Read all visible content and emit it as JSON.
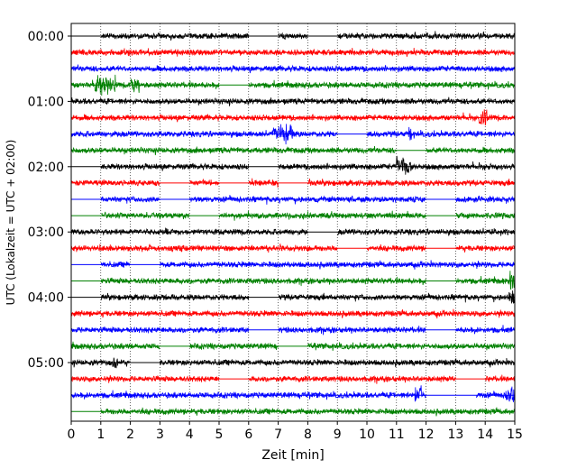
{
  "chart_data": {
    "type": "line",
    "title": "",
    "xlabel": "Zeit  [min]",
    "ylabel": "UTC (Lokalzeit = UTC + 02:00)",
    "xlim": [
      0,
      15
    ],
    "x_ticks": [
      "0",
      "1",
      "2",
      "3",
      "4",
      "5",
      "6",
      "7",
      "8",
      "9",
      "10",
      "11",
      "12",
      "13",
      "14",
      "15"
    ],
    "y_ticks": [
      "00:00",
      "01:00",
      "02:00",
      "03:00",
      "04:00",
      "05:00"
    ],
    "grid": "vertical dotted",
    "colors": [
      "#000000",
      "#ff0000",
      "#0000ff",
      "#008000"
    ],
    "trace_interval_min": 15,
    "traces": [
      {
        "start": "00:00",
        "color": "#000000",
        "gaps": [
          [
            0,
            1
          ],
          [
            6,
            7
          ],
          [
            8,
            9
          ]
        ],
        "bursts": []
      },
      {
        "start": "00:15",
        "color": "#ff0000",
        "gaps": [],
        "bursts": []
      },
      {
        "start": "00:30",
        "color": "#0000ff",
        "gaps": [],
        "bursts": []
      },
      {
        "start": "00:45",
        "color": "#008000",
        "gaps": [
          [
            5,
            6
          ]
        ],
        "bursts": [
          [
            0.8,
            1.5
          ],
          [
            2.0,
            2.3
          ]
        ]
      },
      {
        "start": "01:00",
        "color": "#000000",
        "gaps": [],
        "bursts": []
      },
      {
        "start": "01:15",
        "color": "#ff0000",
        "gaps": [],
        "bursts": [
          [
            13.8,
            14.1
          ]
        ]
      },
      {
        "start": "01:30",
        "color": "#0000ff",
        "gaps": [
          [
            9,
            10
          ]
        ],
        "bursts": [
          [
            6.8,
            7.5
          ],
          [
            11.4,
            11.5
          ]
        ]
      },
      {
        "start": "01:45",
        "color": "#008000",
        "gaps": [
          [
            11,
            12
          ]
        ],
        "bursts": []
      },
      {
        "start": "02:00",
        "color": "#000000",
        "gaps": [
          [
            0,
            1
          ],
          [
            6,
            7
          ]
        ],
        "bursts": [
          [
            11,
            11.5
          ]
        ]
      },
      {
        "start": "02:15",
        "color": "#ff0000",
        "gaps": [
          [
            3,
            4
          ],
          [
            5,
            6
          ],
          [
            7,
            8
          ]
        ],
        "bursts": []
      },
      {
        "start": "02:30",
        "color": "#0000ff",
        "gaps": [
          [
            0,
            1
          ],
          [
            3,
            4
          ],
          [
            12,
            13
          ]
        ],
        "bursts": []
      },
      {
        "start": "02:45",
        "color": "#008000",
        "gaps": [
          [
            0,
            1
          ],
          [
            4,
            5
          ],
          [
            12,
            13
          ]
        ],
        "bursts": []
      },
      {
        "start": "03:00",
        "color": "#000000",
        "gaps": [
          [
            8,
            9
          ]
        ],
        "bursts": []
      },
      {
        "start": "03:15",
        "color": "#ff0000",
        "gaps": [
          [
            9,
            10
          ],
          [
            12,
            13
          ]
        ],
        "bursts": []
      },
      {
        "start": "03:30",
        "color": "#0000ff",
        "gaps": [
          [
            0,
            1
          ],
          [
            2,
            3
          ]
        ],
        "bursts": []
      },
      {
        "start": "03:45",
        "color": "#008000",
        "gaps": [
          [
            0,
            1
          ],
          [
            12,
            13
          ]
        ],
        "bursts": [
          [
            14.8,
            15
          ]
        ]
      },
      {
        "start": "04:00",
        "color": "#000000",
        "gaps": [
          [
            0,
            1
          ],
          [
            6,
            7
          ]
        ],
        "bursts": [
          [
            14.8,
            15
          ]
        ]
      },
      {
        "start": "04:15",
        "color": "#ff0000",
        "gaps": [],
        "bursts": []
      },
      {
        "start": "04:30",
        "color": "#0000ff",
        "gaps": [
          [
            6,
            7
          ],
          [
            12,
            13
          ]
        ],
        "bursts": []
      },
      {
        "start": "04:45",
        "color": "#008000",
        "gaps": [
          [
            3,
            4
          ],
          [
            7,
            8
          ]
        ],
        "bursts": []
      },
      {
        "start": "05:00",
        "color": "#000000",
        "gaps": [
          [
            2,
            3
          ]
        ],
        "bursts": [
          [
            1.4,
            1.6
          ]
        ]
      },
      {
        "start": "05:15",
        "color": "#ff0000",
        "gaps": [
          [
            5,
            6
          ],
          [
            13,
            14
          ]
        ],
        "bursts": []
      },
      {
        "start": "05:30",
        "color": "#0000ff",
        "gaps": [
          [
            12,
            13.7
          ]
        ],
        "bursts": [
          [
            11.6,
            11.9
          ],
          [
            14.7,
            15
          ]
        ]
      },
      {
        "start": "05:45",
        "color": "#008000",
        "gaps": [
          [
            0,
            1
          ]
        ],
        "bursts": []
      }
    ]
  }
}
